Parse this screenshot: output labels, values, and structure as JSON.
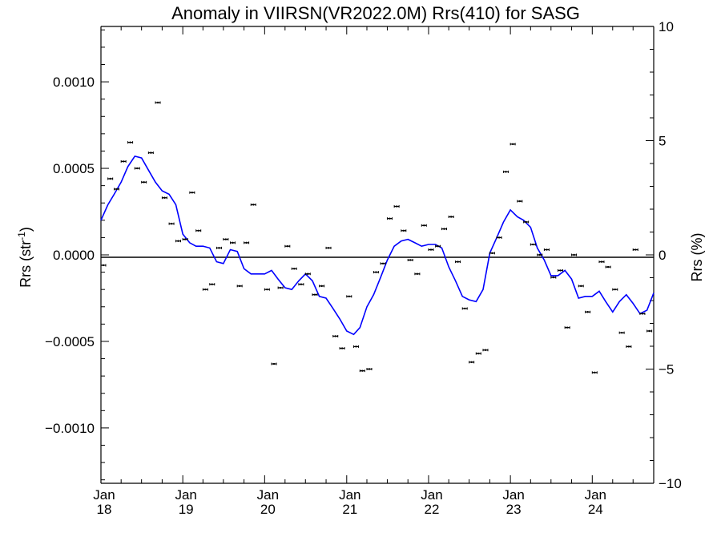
{
  "chart_data": {
    "type": "scatter",
    "title": "Anomaly in VIIRSN(VR2022.0M) Rrs(410) for SASG",
    "ylabel_left": "Rrs (str",
    "ylabel_left_sup": "-1",
    "ylabel_left_close": ")",
    "ylabel_right": "Rrs (%)",
    "x_range": [
      "2018-01-01",
      "2024-10-01"
    ],
    "ylim_left": [
      -0.00132,
      0.00132
    ],
    "ylim_right": [
      -10,
      10
    ],
    "x_ticks": [
      {
        "date": "2018-01-01",
        "month": "Jan",
        "year": "18"
      },
      {
        "date": "2019-01-01",
        "month": "Jan",
        "year": "19"
      },
      {
        "date": "2020-01-01",
        "month": "Jan",
        "year": "20"
      },
      {
        "date": "2021-01-01",
        "month": "Jan",
        "year": "21"
      },
      {
        "date": "2022-01-01",
        "month": "Jan",
        "year": "22"
      },
      {
        "date": "2023-01-01",
        "month": "Jan",
        "year": "23"
      },
      {
        "date": "2024-01-01",
        "month": "Jan",
        "year": "24"
      }
    ],
    "y_ticks_left": [
      {
        "v": 0.001,
        "label": "0.0010"
      },
      {
        "v": 0.0005,
        "label": "0.0005"
      },
      {
        "v": 0.0,
        "label": "0.0000"
      },
      {
        "v": -0.0005,
        "label": "−0.0005"
      },
      {
        "v": -0.001,
        "label": "−0.0010"
      }
    ],
    "y_ticks_right": [
      {
        "v": 10,
        "label": "10"
      },
      {
        "v": 5,
        "label": "5"
      },
      {
        "v": 0,
        "label": "0"
      },
      {
        "v": -5,
        "label": "−5"
      },
      {
        "v": -10,
        "label": "−10"
      }
    ],
    "colors": {
      "line": "#0000ff",
      "points": "#000000",
      "axes": "#000000"
    },
    "series": [
      {
        "kind": "points",
        "x": [
          "2018-01",
          "2018-02",
          "2018-03",
          "2018-04",
          "2018-05",
          "2018-06",
          "2018-07",
          "2018-08",
          "2018-09",
          "2018-10",
          "2018-11",
          "2018-12",
          "2019-01",
          "2019-02",
          "2019-03",
          "2019-04",
          "2019-05",
          "2019-06",
          "2019-07",
          "2019-08",
          "2019-09",
          "2019-10",
          "2019-11",
          "2019-12",
          "2020-01",
          "2020-02",
          "2020-03",
          "2020-04",
          "2020-05",
          "2020-06",
          "2020-07",
          "2020-08",
          "2020-09",
          "2020-10",
          "2020-11",
          "2020-12",
          "2021-01",
          "2021-02",
          "2021-03",
          "2021-04",
          "2021-05",
          "2021-06",
          "2021-07",
          "2021-08",
          "2021-09",
          "2021-10",
          "2021-11",
          "2021-12",
          "2022-01",
          "2022-02",
          "2022-03",
          "2022-04",
          "2022-05",
          "2022-06",
          "2022-07",
          "2022-08",
          "2022-09",
          "2022-10",
          "2022-11",
          "2022-12",
          "2023-01",
          "2023-02",
          "2023-03",
          "2023-04",
          "2023-05",
          "2023-06",
          "2023-07",
          "2023-08",
          "2023-09",
          "2023-10",
          "2023-11",
          "2023-12",
          "2024-01",
          "2024-02",
          "2024-03",
          "2024-04",
          "2024-05",
          "2024-06",
          "2024-07",
          "2024-08",
          "2024-09"
        ],
        "y": [
          -6e-05,
          0.00044,
          0.00038,
          0.00054,
          0.00065,
          0.0005,
          0.00042,
          0.00059,
          0.00088,
          0.00033,
          0.00018,
          8e-05,
          9e-05,
          0.00036,
          0.00014,
          -0.0002,
          -0.00017,
          4e-05,
          9e-05,
          7e-05,
          -0.00018,
          7e-05,
          0.00029,
          null,
          -0.0002,
          -0.00063,
          -0.00019,
          5e-05,
          -8e-05,
          -0.00017,
          -0.00011,
          -0.00023,
          -0.00018,
          4e-05,
          -0.00047,
          -0.00054,
          -0.00024,
          -0.00053,
          -0.00067,
          -0.00066,
          -0.0001,
          -5e-05,
          0.00021,
          0.00028,
          0.00014,
          -3e-05,
          -0.00011,
          0.00017,
          3e-05,
          5e-05,
          0.00015,
          0.00022,
          -4e-05,
          -0.00031,
          -0.00062,
          -0.00057,
          -0.00055,
          1e-05,
          0.0001,
          0.00048,
          0.00064,
          0.00031,
          0.00019,
          6e-05,
          -0.0,
          3e-05,
          -0.00013,
          -9e-05,
          -0.00042,
          0.0,
          -0.00018,
          -0.00033,
          -0.00068,
          -4e-05,
          -7e-05,
          -0.0002,
          -0.00045,
          -0.00053,
          3e-05,
          -0.00034,
          -0.00044
        ]
      },
      {
        "kind": "line",
        "x": [
          "2018-01",
          "2018-02",
          "2018-03",
          "2018-04",
          "2018-05",
          "2018-06",
          "2018-07",
          "2018-08",
          "2018-09",
          "2018-10",
          "2018-11",
          "2018-12",
          "2019-01",
          "2019-02",
          "2019-03",
          "2019-04",
          "2019-05",
          "2019-06",
          "2019-07",
          "2019-08",
          "2019-09",
          "2019-10",
          "2019-11",
          "2019-12",
          "2020-01",
          "2020-02",
          "2020-03",
          "2020-04",
          "2020-05",
          "2020-06",
          "2020-07",
          "2020-08",
          "2020-09",
          "2020-10",
          "2020-11",
          "2020-12",
          "2021-01",
          "2021-02",
          "2021-03",
          "2021-04",
          "2021-05",
          "2021-06",
          "2021-07",
          "2021-08",
          "2021-09",
          "2021-10",
          "2021-11",
          "2021-12",
          "2022-01",
          "2022-02",
          "2022-03",
          "2022-04",
          "2022-05",
          "2022-06",
          "2022-07",
          "2022-08",
          "2022-09",
          "2022-10",
          "2022-11",
          "2022-12",
          "2023-01",
          "2023-02",
          "2023-03",
          "2023-04",
          "2023-05",
          "2023-06",
          "2023-07",
          "2023-08",
          "2023-09",
          "2023-10",
          "2023-11",
          "2023-12",
          "2024-01",
          "2024-02",
          "2024-03",
          "2024-04",
          "2024-05",
          "2024-06",
          "2024-07",
          "2024-08",
          "2024-09",
          "2024-10"
        ],
        "y": [
          0.0002,
          0.00029,
          0.00035,
          0.00042,
          0.00051,
          0.00057,
          0.00056,
          0.00049,
          0.00042,
          0.00037,
          0.00035,
          0.00029,
          0.00012,
          7e-05,
          5e-05,
          5e-05,
          4e-05,
          -4e-05,
          -5e-05,
          3e-05,
          2e-05,
          -8e-05,
          -0.00011,
          -0.00011,
          -0.00011,
          -9e-05,
          -0.00014,
          -0.00019,
          -0.0002,
          -0.00015,
          -0.00011,
          -0.00015,
          -0.00024,
          -0.00025,
          -0.00031,
          -0.00037,
          -0.00044,
          -0.00046,
          -0.00042,
          -0.0003,
          -0.00023,
          -0.00013,
          -3e-05,
          5e-05,
          8e-05,
          9e-05,
          7e-05,
          5e-05,
          6e-05,
          6e-05,
          4e-05,
          -7e-05,
          -0.00015,
          -0.00024,
          -0.00026,
          -0.00027,
          -0.0002,
          1e-05,
          0.0001,
          0.00019,
          0.00026,
          0.00022,
          0.0002,
          0.00016,
          4e-05,
          -3e-05,
          -0.00012,
          -0.00012,
          -9e-05,
          -0.00014,
          -0.00025,
          -0.00024,
          -0.00024,
          -0.00021,
          -0.00027,
          -0.00033,
          -0.00027,
          -0.00023,
          -0.00028,
          -0.00034,
          -0.00032,
          -0.00022
        ]
      }
    ]
  }
}
